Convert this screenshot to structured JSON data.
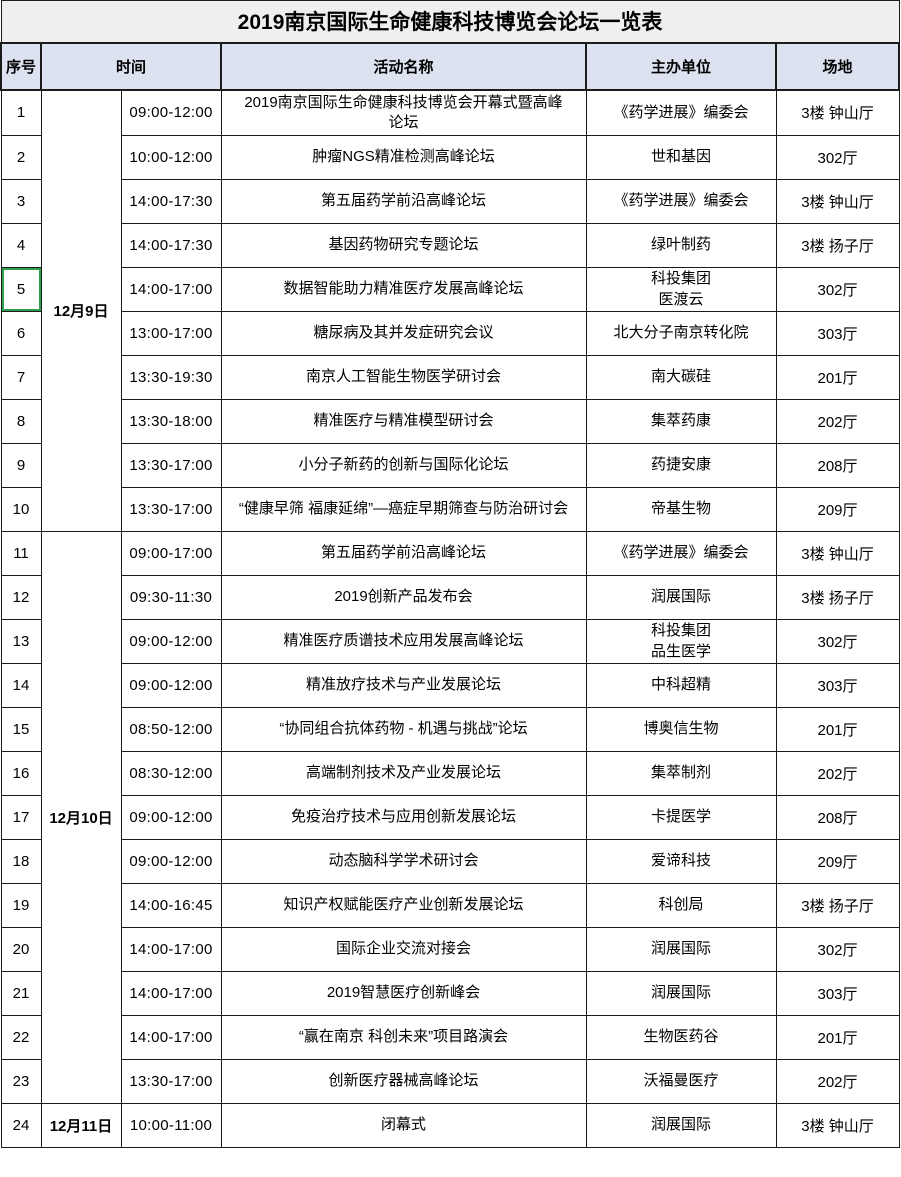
{
  "title": "2019南京国际生命健康科技博览会论坛一览表",
  "columns": [
    "序号",
    "时间",
    "活动名称",
    "主办单位",
    "场地"
  ],
  "colors": {
    "header_bg": "#dce2ef",
    "title_bg": "#f0efed",
    "border": "#1b1b1b",
    "selection_border": "#2f9e4f"
  },
  "date_groups": [
    {
      "date": "12月9日",
      "rowspan": 10
    },
    {
      "date": "12月10日",
      "rowspan": 13
    },
    {
      "date": "12月11日",
      "rowspan": 1
    }
  ],
  "rows": [
    {
      "no": "1",
      "time": "09:00-12:00",
      "name": "2019南京国际生命健康科技博览会开幕式暨高峰论坛",
      "organizer": "《药学进展》编委会",
      "venue": "3楼 钟山厅"
    },
    {
      "no": "2",
      "time": "10:00-12:00",
      "name": "肿瘤NGS精准检测高峰论坛",
      "organizer": "世和基因",
      "venue": "302厅"
    },
    {
      "no": "3",
      "time": "14:00-17:30",
      "name": "第五届药学前沿高峰论坛",
      "organizer": "《药学进展》编委会",
      "venue": "3楼 钟山厅"
    },
    {
      "no": "4",
      "time": "14:00-17:30",
      "name": "基因药物研究专题论坛",
      "organizer": "绿叶制药",
      "venue": "3楼 扬子厅"
    },
    {
      "no": "5",
      "time": "14:00-17:00",
      "name": "数据智能助力精准医疗发展高峰论坛",
      "organizer": "科投集团\n医渡云",
      "venue": "302厅",
      "selected": true
    },
    {
      "no": "6",
      "time": "13:00-17:00",
      "name": "糖尿病及其并发症研究会议",
      "organizer": "北大分子南京转化院",
      "venue": "303厅"
    },
    {
      "no": "7",
      "time": "13:30-19:30",
      "name": "南京人工智能生物医学研讨会",
      "organizer": "南大碳硅",
      "venue": "201厅"
    },
    {
      "no": "8",
      "time": "13:30-18:00",
      "name": "精准医疗与精准模型研讨会",
      "organizer": "集萃药康",
      "venue": "202厅"
    },
    {
      "no": "9",
      "time": "13:30-17:00",
      "name": "小分子新药的创新与国际化论坛",
      "organizer": "药捷安康",
      "venue": "208厅"
    },
    {
      "no": "10",
      "time": "13:30-17:00",
      "name": "“健康早筛 福康延绵”—癌症早期筛查与防治研讨会",
      "organizer": "帝基生物",
      "venue": "209厅"
    },
    {
      "no": "11",
      "time": "09:00-17:00",
      "name": "第五届药学前沿高峰论坛",
      "organizer": "《药学进展》编委会",
      "venue": "3楼 钟山厅"
    },
    {
      "no": "12",
      "time": "09:30-11:30",
      "name": "2019创新产品发布会",
      "organizer": "润展国际",
      "venue": "3楼 扬子厅"
    },
    {
      "no": "13",
      "time": "09:00-12:00",
      "name": "精准医疗质谱技术应用发展高峰论坛",
      "organizer": "科投集团\n品生医学",
      "venue": "302厅"
    },
    {
      "no": "14",
      "time": "09:00-12:00",
      "name": "精准放疗技术与产业发展论坛",
      "organizer": "中科超精",
      "venue": "303厅"
    },
    {
      "no": "15",
      "time": "08:50-12:00",
      "name": "“协同组合抗体药物 - 机遇与挑战”论坛",
      "organizer": "博奥信生物",
      "venue": "201厅"
    },
    {
      "no": "16",
      "time": "08:30-12:00",
      "name": "高端制剂技术及产业发展论坛",
      "organizer": "集萃制剂",
      "venue": "202厅"
    },
    {
      "no": "17",
      "time": "09:00-12:00",
      "name": "免疫治疗技术与应用创新发展论坛",
      "organizer": "卡提医学",
      "venue": "208厅"
    },
    {
      "no": "18",
      "time": "09:00-12:00",
      "name": "动态脑科学学术研讨会",
      "organizer": "爱谛科技",
      "venue": "209厅"
    },
    {
      "no": "19",
      "time": "14:00-16:45",
      "name": "知识产权赋能医疗产业创新发展论坛",
      "organizer": "科创局",
      "venue": "3楼 扬子厅"
    },
    {
      "no": "20",
      "time": "14:00-17:00",
      "name": "国际企业交流对接会",
      "organizer": "润展国际",
      "venue": "302厅"
    },
    {
      "no": "21",
      "time": "14:00-17:00",
      "name": "2019智慧医疗创新峰会",
      "organizer": "润展国际",
      "venue": "303厅"
    },
    {
      "no": "22",
      "time": "14:00-17:00",
      "name": "“赢在南京 科创未来”项目路演会",
      "organizer": "生物医药谷",
      "venue": "201厅"
    },
    {
      "no": "23",
      "time": "13:30-17:00",
      "name": "创新医疗器械高峰论坛",
      "organizer": "沃福曼医疗",
      "venue": "202厅"
    },
    {
      "no": "24",
      "time": "10:00-11:00",
      "name": "闭幕式",
      "organizer": "润展国际",
      "venue": "3楼 钟山厅"
    }
  ]
}
